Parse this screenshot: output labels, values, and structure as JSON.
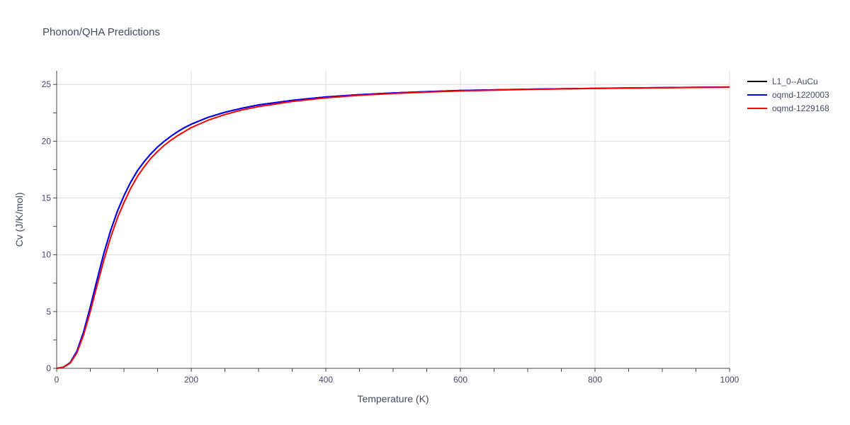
{
  "chart_data": {
    "type": "line",
    "title": "Phonon/QHA Predictions",
    "xlabel": "Temperature (K)",
    "ylabel": "Cv (J/K/mol)",
    "xlim": [
      0,
      1000
    ],
    "ylim": [
      0,
      26.2
    ],
    "xticks": [
      0,
      200,
      400,
      600,
      800,
      1000
    ],
    "xtick_labels": [
      "0",
      "200",
      "400",
      "600",
      "800",
      "1000"
    ],
    "yticks": [
      0,
      5,
      10,
      15,
      20,
      25
    ],
    "ytick_labels": [
      "0",
      "5",
      "10",
      "15",
      "20",
      "25"
    ],
    "grid": true,
    "legend_position": "top-right",
    "series": [
      {
        "name": "L1_0--AuCu",
        "color": "#000000",
        "x": [
          0,
          10,
          20,
          30,
          40,
          50,
          60,
          70,
          80,
          90,
          100,
          110,
          120,
          130,
          140,
          150,
          160,
          170,
          180,
          190,
          200,
          225,
          250,
          275,
          300,
          350,
          400,
          450,
          500,
          550,
          600,
          700,
          800,
          900,
          1000
        ],
        "y": [
          0,
          0.1,
          0.5,
          1.5,
          3.2,
          5.4,
          7.8,
          10.1,
          12.1,
          13.8,
          15.2,
          16.4,
          17.4,
          18.2,
          18.9,
          19.5,
          20.0,
          20.45,
          20.85,
          21.2,
          21.5,
          22.1,
          22.55,
          22.9,
          23.2,
          23.6,
          23.9,
          24.1,
          24.25,
          24.37,
          24.47,
          24.58,
          24.66,
          24.72,
          24.77
        ]
      },
      {
        "name": "oqmd-1220003",
        "color": "#0000ff",
        "x": [
          0,
          10,
          20,
          30,
          40,
          50,
          60,
          70,
          80,
          90,
          100,
          110,
          120,
          130,
          140,
          150,
          160,
          170,
          180,
          190,
          200,
          225,
          250,
          275,
          300,
          350,
          400,
          450,
          500,
          550,
          600,
          700,
          800,
          900,
          1000
        ],
        "y": [
          0,
          0.1,
          0.5,
          1.5,
          3.2,
          5.4,
          7.8,
          10.1,
          12.1,
          13.8,
          15.2,
          16.4,
          17.4,
          18.2,
          18.9,
          19.5,
          20.0,
          20.45,
          20.85,
          21.2,
          21.5,
          22.1,
          22.55,
          22.9,
          23.2,
          23.6,
          23.9,
          24.1,
          24.25,
          24.37,
          24.47,
          24.58,
          24.66,
          24.72,
          24.77
        ]
      },
      {
        "name": "oqmd-1229168",
        "color": "#ff0000",
        "x": [
          0,
          10,
          20,
          30,
          40,
          50,
          60,
          70,
          80,
          90,
          100,
          110,
          120,
          130,
          140,
          150,
          160,
          170,
          180,
          190,
          200,
          225,
          250,
          275,
          300,
          350,
          400,
          450,
          500,
          550,
          600,
          700,
          800,
          900,
          1000
        ],
        "y": [
          0,
          0.09,
          0.45,
          1.35,
          2.95,
          5.0,
          7.3,
          9.5,
          11.5,
          13.2,
          14.6,
          15.85,
          16.9,
          17.75,
          18.5,
          19.1,
          19.65,
          20.1,
          20.5,
          20.85,
          21.2,
          21.85,
          22.35,
          22.75,
          23.05,
          23.5,
          23.82,
          24.05,
          24.2,
          24.33,
          24.43,
          24.56,
          24.65,
          24.71,
          24.76
        ]
      }
    ]
  }
}
